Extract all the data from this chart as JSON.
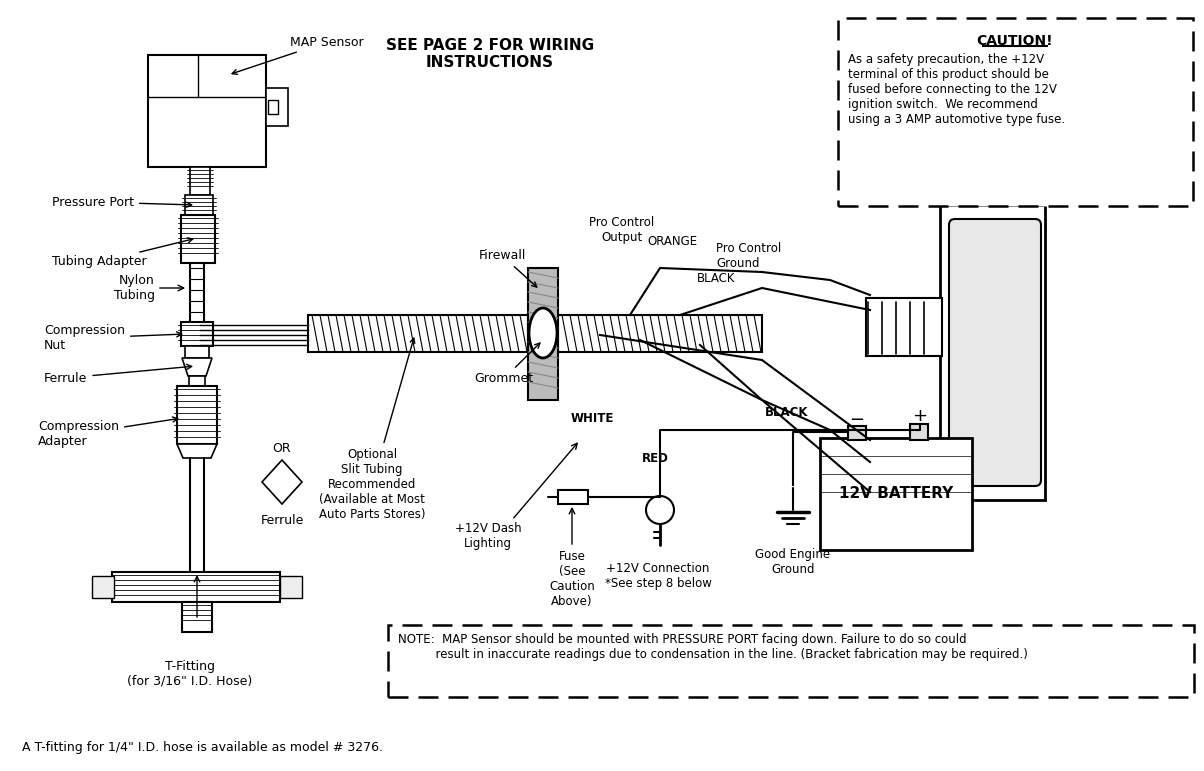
{
  "bg_color": "#ffffff",
  "title": "SEE PAGE 2 FOR WIRING\nINSTRUCTIONS",
  "caution_title": "CAUTION!",
  "caution_text": "As a safety precaution, the +12V\nterminal of this product should be\nfused before connecting to the 12V\nignition switch.  We recommend\nusing a 3 AMP automotive type fuse.",
  "note_text": "NOTE:  MAP Sensor should be mounted with PRESSURE PORT facing down. Failure to do so could\n          result in inaccurate readings due to condensation in the line. (Bracket fabrication may be required.)",
  "bottom_text": "A T-fitting for 1/4\" I.D. hose is available as model # 3276.",
  "label_map_sensor": "MAP Sensor",
  "label_pressure_port": "Pressure Port",
  "label_tubing_adapter": "Tubing Adapter",
  "label_nylon_tubing": "Nylon\nTubing",
  "label_compression_nut": "Compression\nNut",
  "label_ferrule1": "Ferrule",
  "label_ferrule2": "Ferrule",
  "label_compression_adapter": "Compression\nAdapter",
  "label_t_fitting": "T-Fitting\n(for 3/16\" I.D. Hose)",
  "label_firewall": "Firewall",
  "label_grommet": "Grommet",
  "label_optional_slit": "Optional\nSlit Tubing\nRecommended\n(Available at Most\nAuto Parts Stores)",
  "label_orange": "ORANGE",
  "label_pro_control_output": "Pro Control\nOutput",
  "label_pro_control_ground": "Pro Control\nGround",
  "label_black1": "BLACK",
  "label_white": "WHITE",
  "label_red": "RED",
  "label_black2": "BLACK",
  "label_dash_lighting": "+12V Dash\nLighting",
  "label_fuse": "Fuse\n(See\nCaution\nAbove)",
  "label_12v_connection": "+12V Connection\n*See step 8 below",
  "label_good_engine_ground": "Good Engine\nGround",
  "label_12v_battery": "12V BATTERY"
}
